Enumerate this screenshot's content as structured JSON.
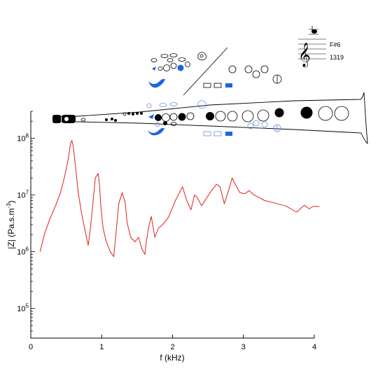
{
  "chart_data": {
    "type": "line",
    "title": "",
    "xlabel": "f (kHz)",
    "ylabel_parts": {
      "base": "|Z| (Pa.s.m",
      "sup": "-3",
      "close": ")"
    },
    "xlim": [
      0,
      4
    ],
    "ylim": [
      30000,
      300000000
    ],
    "yscale": "log",
    "x_ticks": [
      0,
      1,
      2,
      3,
      4
    ],
    "y_tick_exponents": [
      5,
      6,
      7,
      8
    ],
    "grid": false,
    "series": [
      {
        "color": "#e0201b",
        "x": [
          0.13,
          0.2,
          0.27,
          0.35,
          0.42,
          0.48,
          0.53,
          0.56,
          0.58,
          0.6,
          0.63,
          0.67,
          0.72,
          0.77,
          0.81,
          0.84,
          0.87,
          0.91,
          0.95,
          0.97,
          0.99,
          1.02,
          1.06,
          1.12,
          1.17,
          1.2,
          1.24,
          1.29,
          1.33,
          1.36,
          1.41,
          1.47,
          1.52,
          1.57,
          1.61,
          1.63,
          1.66,
          1.7,
          1.75,
          1.8,
          1.86,
          1.94,
          2.04,
          2.14,
          2.2,
          2.26,
          2.31,
          2.35,
          2.41,
          2.47,
          2.55,
          2.62,
          2.67,
          2.73,
          2.79,
          2.84,
          2.89,
          2.95,
          3.02,
          3.08,
          3.15,
          3.3,
          3.45,
          3.6,
          3.75,
          3.86,
          3.93,
          3.98,
          4.07
        ],
        "y": [
          1000000,
          2200000,
          3800000,
          6500000,
          11000000,
          22000000,
          45000000,
          80000000,
          92000000,
          70000000,
          32000000,
          11000000,
          4500000,
          2200000,
          1300000,
          2500000,
          6000000,
          20000000,
          24000000,
          15000000,
          6000000,
          2600000,
          1600000,
          1000000,
          820000,
          2000000,
          7000000,
          11000000,
          7500000,
          3200000,
          1800000,
          1500000,
          1800000,
          1100000,
          900000,
          1500000,
          2600000,
          4200000,
          1800000,
          2600000,
          3000000,
          4000000,
          8000000,
          14000000,
          8000000,
          5500000,
          10000000,
          9000000,
          6500000,
          8500000,
          12000000,
          15500000,
          14000000,
          7000000,
          12000000,
          20000000,
          15000000,
          11000000,
          10500000,
          12000000,
          10000000,
          8000000,
          7200000,
          6400000,
          5000000,
          6600000,
          5700000,
          6300000,
          6300000
        ]
      }
    ]
  },
  "fingering": {
    "note_name": "F#6",
    "frequency_label": "1319",
    "key_closed_color": "#000000",
    "key_open_color": "#ffffff",
    "alt_key_color": "#1f63e0",
    "alt_key_outline_color": "#6f8fe0"
  }
}
